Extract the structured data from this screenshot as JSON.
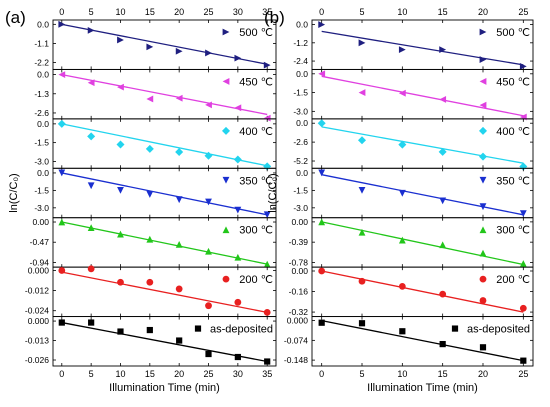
{
  "chart_data": [
    {
      "type": "scatter",
      "panel_label": "(a)",
      "ylabel": "ln(C/C₀)",
      "xlabel": "Illumination Time (min)",
      "xlim": [
        -1.5,
        36.5
      ],
      "xticks": [
        0,
        5,
        10,
        15,
        20,
        25,
        30,
        35
      ],
      "subplots": [
        {
          "label": "500 ℃",
          "color": "#1f1f80",
          "marker": "triangle-right",
          "ylim": [
            -2.6,
            0.25
          ],
          "yticks": [
            "0.0",
            "-1.1",
            "-2.2"
          ],
          "ytick_values": [
            0,
            -1.1,
            -2.2
          ],
          "points": {
            "x": [
              0,
              5,
              10,
              15,
              20,
              25,
              30,
              35
            ],
            "y": [
              0.0,
              -0.35,
              -0.9,
              -1.3,
              -1.55,
              -1.65,
              -1.95,
              -2.35
            ]
          },
          "fit": {
            "x": [
              0,
              35
            ],
            "y": [
              0.0,
              -2.3
            ]
          }
        },
        {
          "label": "450 ℃",
          "color": "#e040e0",
          "marker": "triangle-left",
          "ylim": [
            -3.0,
            0.35
          ],
          "yticks": [
            "0.0",
            "-1.3",
            "-2.6"
          ],
          "ytick_values": [
            0,
            -1.3,
            -2.6
          ],
          "points": {
            "x": [
              0,
              5,
              10,
              15,
              20,
              25,
              30,
              35
            ],
            "y": [
              0.0,
              -0.55,
              -0.85,
              -1.65,
              -1.6,
              -2.05,
              -2.25,
              -2.95
            ]
          },
          "fit": {
            "x": [
              0,
              35
            ],
            "y": [
              0.0,
              -2.7
            ]
          }
        },
        {
          "label": "400 ℃",
          "color": "#22d4ee",
          "marker": "diamond",
          "ylim": [
            -3.55,
            0.4
          ],
          "yticks": [
            "0.0",
            "-1.5",
            "-3.0"
          ],
          "ytick_values": [
            0,
            -1.5,
            -3.0
          ],
          "points": {
            "x": [
              0,
              5,
              10,
              15,
              20,
              25,
              30,
              35
            ],
            "y": [
              0.0,
              -1.0,
              -1.65,
              -2.0,
              -2.25,
              -2.55,
              -2.85,
              -3.4
            ]
          },
          "fit": {
            "x": [
              0,
              35
            ],
            "y": [
              0.0,
              -3.35
            ]
          }
        },
        {
          "label": "350 ℃",
          "color": "#1a2fd0",
          "marker": "triangle-down",
          "ylim": [
            -3.85,
            0.4
          ],
          "yticks": [
            "0.0",
            "-1.5",
            "-3.0"
          ],
          "ytick_values": [
            0,
            -1.5,
            -3.0
          ],
          "points": {
            "x": [
              0,
              5,
              10,
              15,
              20,
              25,
              30,
              35
            ],
            "y": [
              0.0,
              -1.1,
              -1.5,
              -1.85,
              -2.3,
              -2.5,
              -3.2,
              -3.6
            ]
          },
          "fit": {
            "x": [
              0,
              35
            ],
            "y": [
              0.0,
              -3.6
            ]
          }
        },
        {
          "label": "300 ℃",
          "color": "#22c61a",
          "marker": "triangle-up",
          "ylim": [
            -1.05,
            0.1
          ],
          "yticks": [
            "0.00",
            "-0.47",
            "-0.94"
          ],
          "ytick_values": [
            0,
            -0.47,
            -0.94
          ],
          "points": {
            "x": [
              0,
              5,
              10,
              15,
              20,
              25,
              30,
              35
            ],
            "y": [
              0.0,
              -0.13,
              -0.28,
              -0.4,
              -0.52,
              -0.68,
              -0.82,
              -0.98
            ]
          },
          "fit": {
            "x": [
              0,
              35
            ],
            "y": [
              0.0,
              -0.98
            ]
          }
        },
        {
          "label": "200 ℃",
          "color": "#e82020",
          "marker": "circle",
          "ylim": [
            -0.0275,
            0.002
          ],
          "yticks": [
            "0.000",
            "-0.012",
            "-0.024"
          ],
          "ytick_values": [
            0,
            -0.012,
            -0.024
          ],
          "points": {
            "x": [
              0,
              5,
              10,
              15,
              20,
              25,
              30,
              35
            ],
            "y": [
              0.0,
              0.001,
              -0.007,
              -0.007,
              -0.011,
              -0.021,
              -0.019,
              -0.025
            ]
          },
          "fit": {
            "x": [
              0,
              35
            ],
            "y": [
              -0.001,
              -0.025
            ]
          }
        },
        {
          "label": "as-deposited",
          "color": "#000000",
          "marker": "square",
          "ylim": [
            -0.03,
            0.003
          ],
          "yticks": [
            "0.000",
            "-0.013",
            "-0.026"
          ],
          "ytick_values": [
            0,
            -0.013,
            -0.026
          ],
          "points": {
            "x": [
              0,
              5,
              10,
              15,
              20,
              25,
              30,
              35
            ],
            "y": [
              -0.001,
              -0.001,
              -0.007,
              -0.006,
              -0.013,
              -0.022,
              -0.024,
              -0.027
            ]
          },
          "fit": {
            "x": [
              0,
              35
            ],
            "y": [
              -0.001,
              -0.027
            ]
          }
        }
      ]
    },
    {
      "type": "scatter",
      "panel_label": "(b)",
      "ylabel": "ln(C/C₀)",
      "xlabel": "Illumination Time (min)",
      "xlim": [
        -1.2,
        26.2
      ],
      "xticks": [
        0,
        5,
        10,
        15,
        20,
        25
      ],
      "subplots": [
        {
          "label": "500 ℃",
          "color": "#1f1f80",
          "marker": "triangle-right",
          "ylim": [
            -2.95,
            0.3
          ],
          "yticks": [
            "0.0",
            "-1.2",
            "-2.4"
          ],
          "ytick_values": [
            0,
            -1.2,
            -2.4
          ],
          "points": {
            "x": [
              0,
              5,
              10,
              15,
              20,
              25
            ],
            "y": [
              0.0,
              -1.2,
              -1.65,
              -1.65,
              -2.3,
              -2.75
            ]
          },
          "fit": {
            "x": [
              0,
              25
            ],
            "y": [
              -0.45,
              -2.65
            ]
          }
        },
        {
          "label": "450 ℃",
          "color": "#e040e0",
          "marker": "triangle-left",
          "ylim": [
            -3.6,
            0.35
          ],
          "yticks": [
            "0.0",
            "-1.5",
            "-3.0"
          ],
          "ytick_values": [
            0,
            -1.5,
            -3.0
          ],
          "points": {
            "x": [
              0,
              5,
              10,
              15,
              20,
              25
            ],
            "y": [
              0.0,
              -1.5,
              -1.55,
              -2.05,
              -2.5,
              -3.45
            ]
          },
          "fit": {
            "x": [
              0,
              25
            ],
            "y": [
              -0.2,
              -3.35
            ]
          }
        },
        {
          "label": "400 ℃",
          "color": "#22d4ee",
          "marker": "diamond",
          "ylim": [
            -6.2,
            0.6
          ],
          "yticks": [
            "0.0",
            "-2.6",
            "-5.2"
          ],
          "ytick_values": [
            0,
            -2.6,
            -5.2
          ],
          "points": {
            "x": [
              0,
              5,
              10,
              15,
              20,
              25
            ],
            "y": [
              0.0,
              -2.35,
              -2.95,
              -3.95,
              -4.6,
              -5.95
            ]
          },
          "fit": {
            "x": [
              0,
              25
            ],
            "y": [
              -0.5,
              -5.5
            ]
          }
        },
        {
          "label": "350 ℃",
          "color": "#1a2fd0",
          "marker": "triangle-down",
          "ylim": [
            -3.85,
            0.4
          ],
          "yticks": [
            "0.0",
            "-1.5",
            "-3.0"
          ],
          "ytick_values": [
            0,
            -1.5,
            -3.0
          ],
          "points": {
            "x": [
              0,
              5,
              10,
              15,
              20,
              25
            ],
            "y": [
              0.0,
              -1.5,
              -1.75,
              -2.4,
              -2.9,
              -3.5
            ]
          },
          "fit": {
            "x": [
              0,
              25
            ],
            "y": [
              -0.15,
              -3.6
            ]
          }
        },
        {
          "label": "300 ℃",
          "color": "#22c61a",
          "marker": "triangle-up",
          "ylim": [
            -0.87,
            0.08
          ],
          "yticks": [
            "0.00",
            "-0.39",
            "-0.78"
          ],
          "ytick_values": [
            0,
            -0.39,
            -0.78
          ],
          "points": {
            "x": [
              0,
              5,
              10,
              15,
              20,
              25
            ],
            "y": [
              0.0,
              -0.2,
              -0.35,
              -0.44,
              -0.6,
              -0.8
            ]
          },
          "fit": {
            "x": [
              0,
              25
            ],
            "y": [
              0.0,
              -0.82
            ]
          }
        },
        {
          "label": "200 ℃",
          "color": "#e82020",
          "marker": "circle",
          "ylim": [
            -0.355,
            0.03
          ],
          "yticks": [
            "0.00",
            "-0.16",
            "-0.32"
          ],
          "ytick_values": [
            0,
            -0.16,
            -0.32
          ],
          "points": {
            "x": [
              0,
              5,
              10,
              15,
              20,
              25
            ],
            "y": [
              0.0,
              -0.08,
              -0.12,
              -0.18,
              -0.23,
              -0.29
            ]
          },
          "fit": {
            "x": [
              0,
              25
            ],
            "y": [
              0.0,
              -0.32
            ]
          }
        },
        {
          "label": "as-deposited",
          "color": "#000000",
          "marker": "square",
          "ylim": [
            -0.17,
            0.015
          ],
          "yticks": [
            "0.000",
            "-0.074",
            "-0.148"
          ],
          "ytick_values": [
            0,
            -0.074,
            -0.148
          ],
          "points": {
            "x": [
              0,
              5,
              10,
              15,
              20,
              25
            ],
            "y": [
              -0.008,
              -0.01,
              -0.04,
              -0.088,
              -0.1,
              -0.15
            ]
          },
          "fit": {
            "x": [
              0,
              25
            ],
            "y": [
              0.0,
              -0.15
            ]
          }
        }
      ]
    }
  ]
}
